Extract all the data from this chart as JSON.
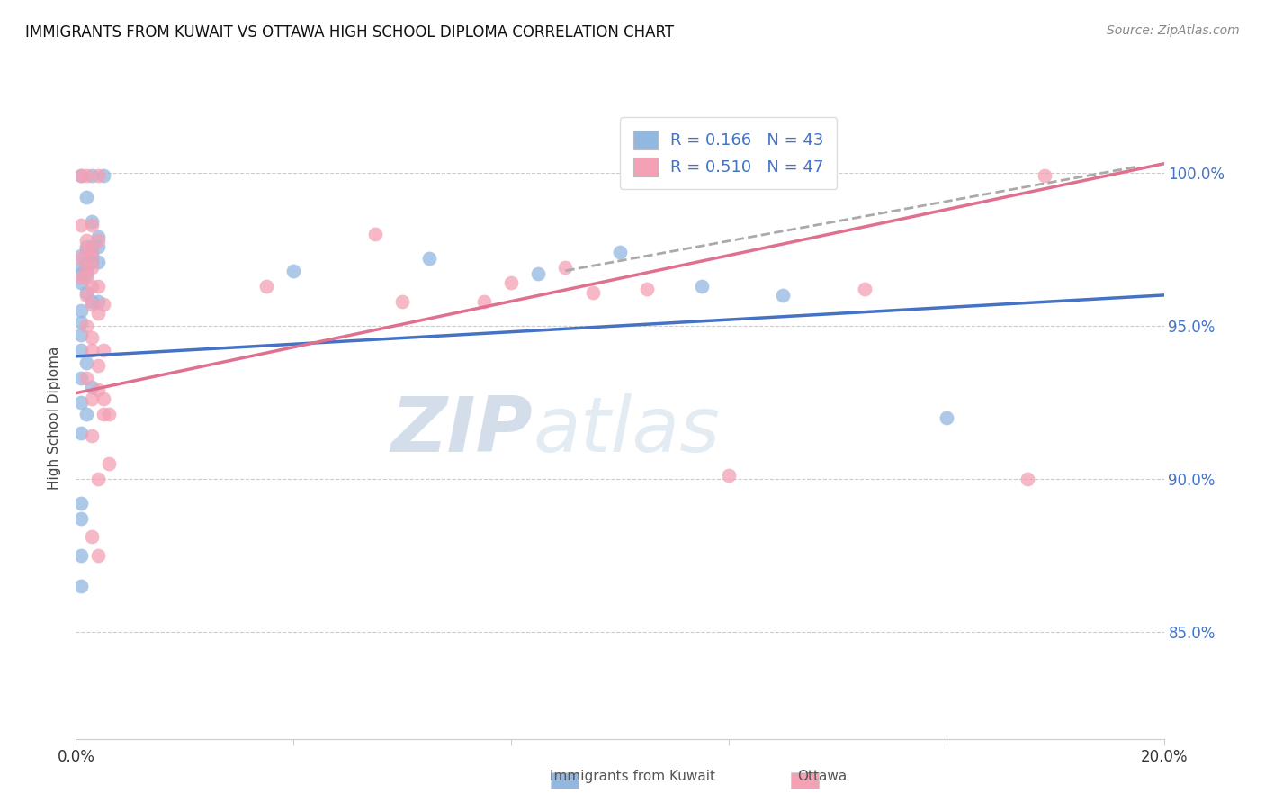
{
  "title": "IMMIGRANTS FROM KUWAIT VS OTTAWA HIGH SCHOOL DIPLOMA CORRELATION CHART",
  "source": "Source: ZipAtlas.com",
  "ylabel": "High School Diploma",
  "y_tick_labels": [
    "85.0%",
    "90.0%",
    "95.0%",
    "100.0%"
  ],
  "y_tick_values": [
    0.85,
    0.9,
    0.95,
    1.0
  ],
  "x_range": [
    0.0,
    0.2
  ],
  "y_range": [
    0.815,
    1.025
  ],
  "legend_label1": "R = 0.166   N = 43",
  "legend_label2": "R = 0.510   N = 47",
  "legend_color1": "#92B8E0",
  "legend_color2": "#F4A0B5",
  "watermark_zip": "ZIP",
  "watermark_atlas": "atlas",
  "scatter_blue": [
    [
      0.001,
      0.999
    ],
    [
      0.003,
      0.999
    ],
    [
      0.005,
      0.999
    ],
    [
      0.002,
      0.992
    ],
    [
      0.003,
      0.984
    ],
    [
      0.004,
      0.979
    ],
    [
      0.002,
      0.976
    ],
    [
      0.003,
      0.976
    ],
    [
      0.004,
      0.976
    ],
    [
      0.001,
      0.973
    ],
    [
      0.003,
      0.973
    ],
    [
      0.002,
      0.971
    ],
    [
      0.003,
      0.971
    ],
    [
      0.004,
      0.971
    ],
    [
      0.001,
      0.969
    ],
    [
      0.002,
      0.969
    ],
    [
      0.001,
      0.967
    ],
    [
      0.002,
      0.967
    ],
    [
      0.001,
      0.964
    ],
    [
      0.002,
      0.961
    ],
    [
      0.003,
      0.958
    ],
    [
      0.004,
      0.958
    ],
    [
      0.001,
      0.955
    ],
    [
      0.001,
      0.951
    ],
    [
      0.001,
      0.947
    ],
    [
      0.001,
      0.942
    ],
    [
      0.002,
      0.938
    ],
    [
      0.001,
      0.933
    ],
    [
      0.003,
      0.93
    ],
    [
      0.001,
      0.925
    ],
    [
      0.002,
      0.921
    ],
    [
      0.001,
      0.915
    ],
    [
      0.001,
      0.892
    ],
    [
      0.001,
      0.887
    ],
    [
      0.001,
      0.875
    ],
    [
      0.001,
      0.865
    ],
    [
      0.04,
      0.968
    ],
    [
      0.065,
      0.972
    ],
    [
      0.085,
      0.967
    ],
    [
      0.1,
      0.974
    ],
    [
      0.115,
      0.963
    ],
    [
      0.13,
      0.96
    ],
    [
      0.16,
      0.92
    ]
  ],
  "scatter_pink": [
    [
      0.001,
      0.999
    ],
    [
      0.002,
      0.999
    ],
    [
      0.004,
      0.999
    ],
    [
      0.001,
      0.983
    ],
    [
      0.003,
      0.983
    ],
    [
      0.002,
      0.978
    ],
    [
      0.004,
      0.978
    ],
    [
      0.002,
      0.975
    ],
    [
      0.003,
      0.975
    ],
    [
      0.001,
      0.972
    ],
    [
      0.003,
      0.972
    ],
    [
      0.002,
      0.969
    ],
    [
      0.003,
      0.969
    ],
    [
      0.001,
      0.966
    ],
    [
      0.002,
      0.966
    ],
    [
      0.003,
      0.963
    ],
    [
      0.004,
      0.963
    ],
    [
      0.002,
      0.96
    ],
    [
      0.003,
      0.957
    ],
    [
      0.005,
      0.957
    ],
    [
      0.004,
      0.954
    ],
    [
      0.002,
      0.95
    ],
    [
      0.003,
      0.946
    ],
    [
      0.003,
      0.942
    ],
    [
      0.005,
      0.942
    ],
    [
      0.004,
      0.937
    ],
    [
      0.002,
      0.933
    ],
    [
      0.004,
      0.929
    ],
    [
      0.003,
      0.926
    ],
    [
      0.005,
      0.926
    ],
    [
      0.005,
      0.921
    ],
    [
      0.006,
      0.921
    ],
    [
      0.003,
      0.914
    ],
    [
      0.006,
      0.905
    ],
    [
      0.004,
      0.9
    ],
    [
      0.003,
      0.881
    ],
    [
      0.004,
      0.875
    ],
    [
      0.035,
      0.963
    ],
    [
      0.055,
      0.98
    ],
    [
      0.06,
      0.958
    ],
    [
      0.075,
      0.958
    ],
    [
      0.08,
      0.964
    ],
    [
      0.09,
      0.969
    ],
    [
      0.095,
      0.961
    ],
    [
      0.105,
      0.962
    ],
    [
      0.12,
      0.901
    ],
    [
      0.145,
      0.962
    ],
    [
      0.175,
      0.9
    ],
    [
      0.178,
      0.999
    ]
  ],
  "blue_line_x": [
    0.0,
    0.2
  ],
  "blue_line_y": [
    0.94,
    0.96
  ],
  "pink_line_x": [
    0.0,
    0.2
  ],
  "pink_line_y": [
    0.928,
    1.003
  ],
  "dashed_line_x": [
    0.09,
    0.195
  ],
  "dashed_line_y": [
    0.968,
    1.002
  ]
}
